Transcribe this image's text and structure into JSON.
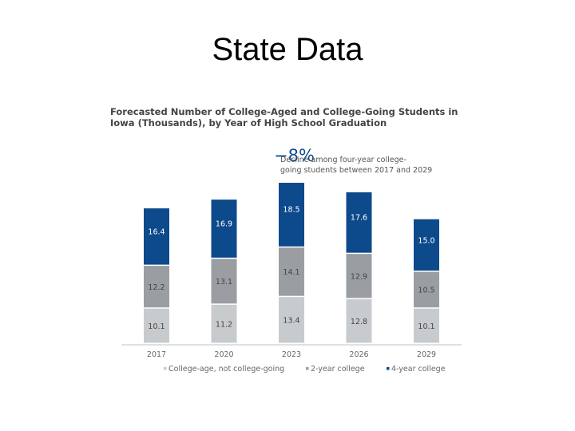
{
  "slide": {
    "title": "State Data"
  },
  "callout": {
    "value": "−8%",
    "text_line1": "Decline among four-year college-",
    "text_line2": "going students between 2017 and 2029"
  },
  "chart_data": {
    "type": "bar",
    "stacked": true,
    "title_line1": "Forecasted Number of College-Aged and College-Going Students in",
    "title_line2": "Iowa (Thousands), by Year of High School Graduation",
    "categories": [
      "2017",
      "2020",
      "2023",
      "2026",
      "2029"
    ],
    "series": [
      {
        "name": "College-age, not college-going",
        "values": [
          10.1,
          11.2,
          13.4,
          12.8,
          10.1
        ],
        "color": "#c8cbce",
        "label_color": "#444444"
      },
      {
        "name": "2-year college",
        "values": [
          12.2,
          13.1,
          14.1,
          12.9,
          10.5
        ],
        "color": "#9a9ea3",
        "label_color": "#444444"
      },
      {
        "name": "4-year college",
        "values": [
          16.4,
          16.9,
          18.5,
          17.6,
          15.0
        ],
        "color": "#0d4a8c",
        "label_color": "#ffffff"
      }
    ],
    "legend_position": "bottom",
    "ylim": [
      0,
      46
    ],
    "grid": false
  }
}
